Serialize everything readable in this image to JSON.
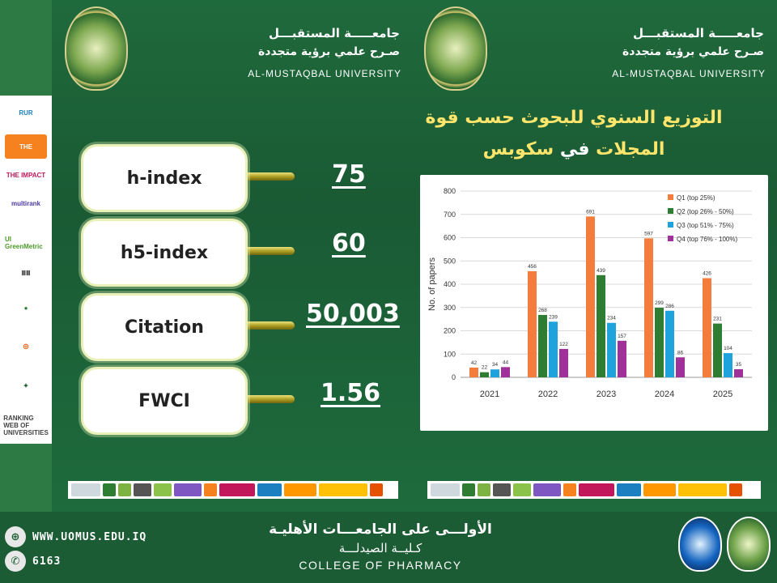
{
  "university": {
    "name_ar": "جامعـــــة المستقبـــل",
    "slogan_ar": "صـرح علمي برؤية متجددة",
    "name_en": "AL-MUSTAQBAL UNIVERSITY"
  },
  "sidebar": {
    "logos": [
      {
        "name": "rur-logo",
        "text": "RUR",
        "bg": "#ffffff",
        "fg": "#1c7fbf"
      },
      {
        "name": "the-logo",
        "text": "THE",
        "bg": "#f5821f",
        "fg": "#ffffff"
      },
      {
        "name": "the-impact-logo",
        "text": "THE IMPACT",
        "bg": "#ffffff",
        "fg": "#c2185b"
      },
      {
        "name": "multirank-logo",
        "text": "multirank",
        "bg": "#ffffff",
        "fg": "#4a3aa8"
      },
      {
        "name": "ui-greenmetric-logo",
        "text": "UI GreenMetric",
        "bg": "#ffffff",
        "fg": "#4c9a2a"
      },
      {
        "name": "qs-columns-logo",
        "text": "ⅢⅢ",
        "bg": "#ffffff",
        "fg": "#333333"
      },
      {
        "name": "arab-ranking-logo",
        "text": "●",
        "bg": "#ffffff",
        "fg": "#2e7d32"
      },
      {
        "name": "sdg-logo",
        "text": "◎",
        "bg": "#ffffff",
        "fg": "#e65100"
      },
      {
        "name": "arab-universities-logo",
        "text": "✦",
        "bg": "#ffffff",
        "fg": "#1c5c34"
      },
      {
        "name": "webometrics-logo",
        "text": "RANKING WEB OF UNIVERSITIES",
        "bg": "#ffffff",
        "fg": "#444444"
      }
    ]
  },
  "metrics": [
    {
      "label": "h-index",
      "value": "75"
    },
    {
      "label": "h5-index",
      "value": "60"
    },
    {
      "label": "Citation",
      "value": "50,003"
    },
    {
      "label": "FWCI",
      "value": "1.56"
    }
  ],
  "chart_title": {
    "line1": "التوزيع السنوي للبحوث حسب قوة",
    "line2a": "المجلات",
    "line2b": " في ",
    "line2c": "سكوبس"
  },
  "footer": {
    "website": "WWW.UOMUS.EDU.IQ",
    "phone": "6163",
    "ar_line1": "الأولـــى على الجامعـــات الأهليـة",
    "ar_line2": "كـليــة الصيدلـــة",
    "en_line": "COLLEGE OF PHARMACY",
    "www_icon": "globe-icon",
    "phone_icon": "phone-icon"
  },
  "chart_data": {
    "type": "bar",
    "categories": [
      "2021",
      "2022",
      "2023",
      "2024",
      "2025"
    ],
    "series": [
      {
        "name": "Q1 (top 25%)",
        "color": "#f47c3c",
        "values": [
          42,
          456,
          691,
          597,
          426
        ]
      },
      {
        "name": "Q2 (top 26% - 50%)",
        "color": "#2e7d32",
        "values": [
          22,
          268,
          439,
          299,
          231
        ]
      },
      {
        "name": "Q3 (top 51% - 75%)",
        "color": "#1fa3dc",
        "values": [
          34,
          239,
          234,
          286,
          104
        ]
      },
      {
        "name": "Q4 (top 76% - 100%)",
        "color": "#a0309a",
        "values": [
          44,
          122,
          157,
          86,
          35
        ]
      }
    ],
    "ylabel": "No. of papers",
    "xlabel": "",
    "ylim": [
      0,
      800
    ],
    "yticks": [
      0,
      100,
      200,
      300,
      400,
      500,
      600,
      700,
      800
    ],
    "grid": true,
    "legend": "top-right"
  }
}
